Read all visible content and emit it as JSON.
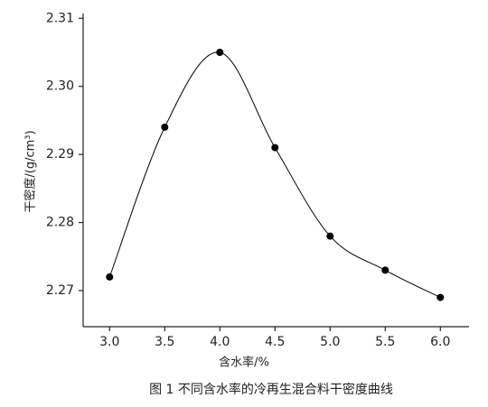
{
  "chart_data": {
    "type": "line",
    "x_label": "含水率/%",
    "y_label": "干密度/(g/cm³)",
    "caption": "图 1 不同含水率的冷再生混合料干密度曲线",
    "x": [
      3.0,
      3.5,
      4.0,
      4.5,
      5.0,
      5.5,
      6.0
    ],
    "values": [
      2.272,
      2.294,
      2.305,
      2.291,
      2.278,
      2.273,
      2.269
    ],
    "color": "#000000",
    "xlim": [
      2.76,
      6.26
    ],
    "ylim": [
      2.2647,
      2.3107
    ],
    "xticks": [
      {
        "value": 3,
        "label": "3.0"
      },
      {
        "value": 3.5,
        "label": "3.5"
      },
      {
        "value": 4,
        "label": "4.0"
      },
      {
        "value": 4.5,
        "label": "4.5"
      },
      {
        "value": 5,
        "label": "5.0"
      },
      {
        "value": 5.5,
        "label": "5.5"
      },
      {
        "value": 6,
        "label": "6.0"
      }
    ],
    "yticks": [
      2.27,
      2.28,
      2.29,
      {
        "value": 2.3,
        "label": "2.30"
      },
      2.31
    ],
    "grid": false
  }
}
